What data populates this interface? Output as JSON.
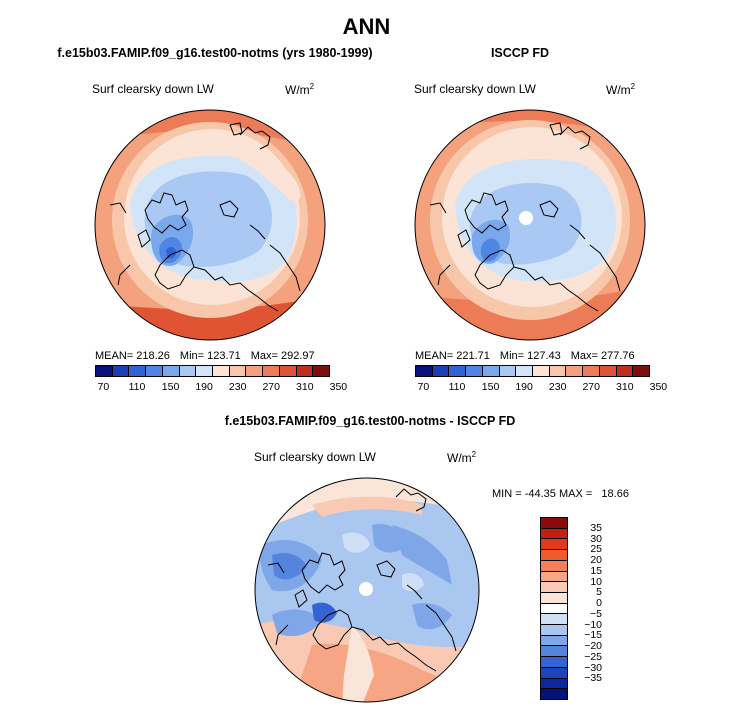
{
  "main_title": "ANN",
  "panels": {
    "model": {
      "title": "f.e15b03.FAMIP.f09_g16.test00-notms (yrs 1980-1999)",
      "variable": "Surf clearsky down LW",
      "units": "W/m",
      "units_sup": "2",
      "mean": "MEAN= 218.26",
      "min": "Min= 123.71",
      "max": "Max= 292.97"
    },
    "obs": {
      "title": "ISCCP FD",
      "variable": "Surf clearsky down LW",
      "units": "W/m",
      "units_sup": "2",
      "mean": "MEAN= 221.71",
      "min": "Min= 127.43",
      "max": "Max= 277.76"
    },
    "diff": {
      "title": "f.e15b03.FAMIP.f09_g16.test00-notms - ISCCP FD",
      "variable": "Surf clearsky down LW",
      "units": "W/m",
      "units_sup": "2",
      "minmax": "MIN = -44.35 MAX =   18.66"
    }
  },
  "colorbar_main": {
    "colors": [
      "#08127a",
      "#1a3fb8",
      "#2f64d6",
      "#4d87e3",
      "#7aa8ec",
      "#a9c8f3",
      "#d2e4f8",
      "#fbe4d5",
      "#f8c7aa",
      "#f4a27e",
      "#ec7b58",
      "#e05434",
      "#c42c1c",
      "#7d0f0b"
    ],
    "tick_labels": [
      "70",
      "110",
      "150",
      "190",
      "230",
      "270",
      "310",
      "350"
    ]
  },
  "colorbar_diff": {
    "colors": [
      "#8b0a0a",
      "#c21f12",
      "#e03a1c",
      "#ef5b2b",
      "#f3805a",
      "#f6a585",
      "#f9c9b3",
      "#fbe4d8",
      "#ffffff",
      "#cfe0f6",
      "#aac7f0",
      "#7fa7e8",
      "#5584df",
      "#3563d1",
      "#1b44bd",
      "#0b28a0",
      "#041478"
    ],
    "labels": [
      "35",
      "30",
      "25",
      "20",
      "15",
      "10",
      "5",
      "0",
      "−5",
      "−10",
      "−15",
      "−20",
      "−25",
      "−30",
      "−35"
    ]
  }
}
